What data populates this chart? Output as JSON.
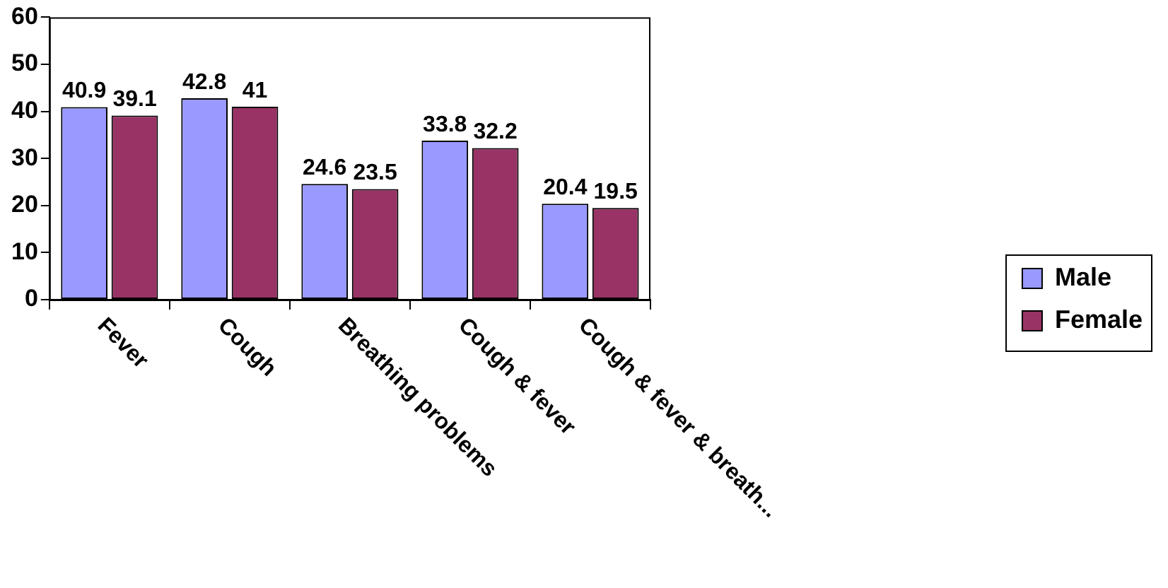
{
  "chart_data": {
    "type": "bar",
    "categories": [
      "Fever",
      "Cough",
      "Breathing problems",
      "Cough & fever",
      "Cough & fever & breath..."
    ],
    "series": [
      {
        "name": "Male",
        "color": "#9999ff",
        "values": [
          40.9,
          42.8,
          24.6,
          33.8,
          20.4
        ]
      },
      {
        "name": "Female",
        "color": "#993366",
        "values": [
          39.1,
          41,
          23.5,
          32.2,
          19.5
        ]
      }
    ],
    "ylim": [
      0,
      60
    ],
    "yticks": [
      0,
      10,
      20,
      30,
      40,
      50,
      60
    ],
    "grid": false,
    "legend": "right",
    "data_labels": true
  }
}
